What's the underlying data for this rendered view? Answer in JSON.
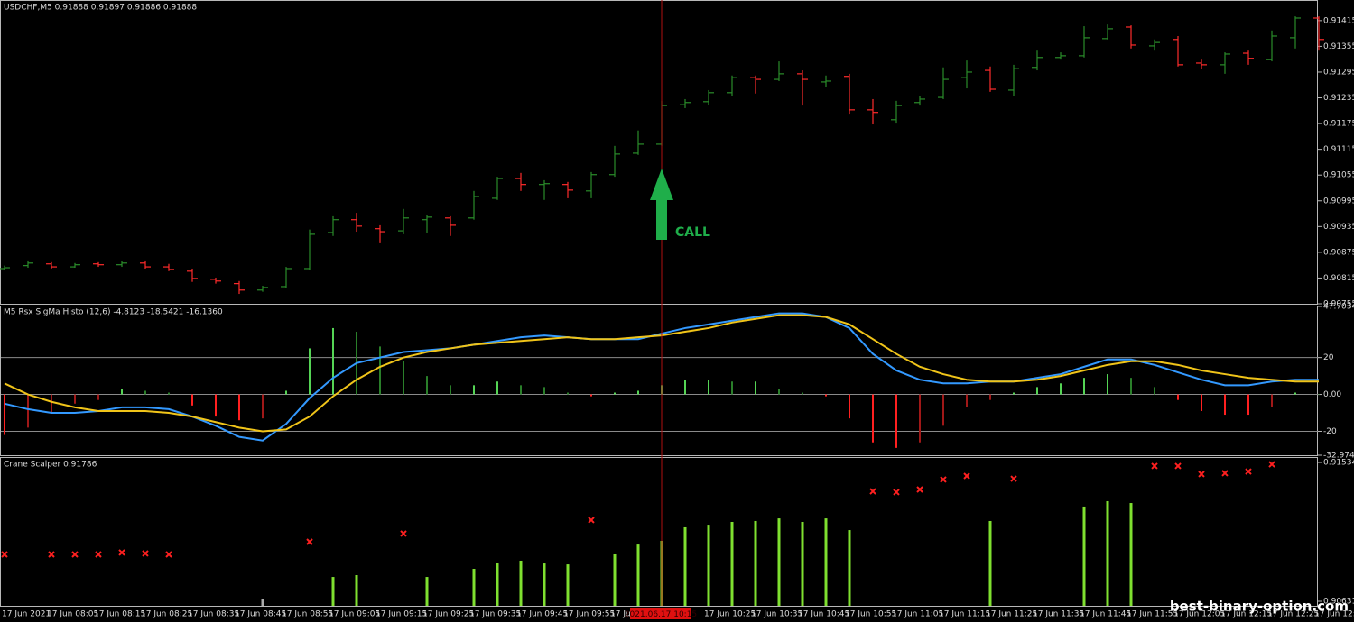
{
  "chart_data": [
    {
      "type": "ohlc",
      "title": "USDCHF,M5  0.91888 0.91897 0.91886 0.91888",
      "annotation": "CALL",
      "up_color": "#2a8c2a",
      "down_color": "#ff2b2b",
      "ylim": [
        0.90755,
        0.91463
      ],
      "yticks": [
        0.91415,
        0.91355,
        0.91295,
        0.91235,
        0.91175,
        0.91115,
        0.91055,
        0.90995,
        0.90935,
        0.90875,
        0.90815,
        0.90755
      ],
      "open": [
        0.90837,
        0.90844,
        0.90848,
        0.90841,
        0.90848,
        0.90846,
        0.9085,
        0.90841,
        0.90831,
        0.90812,
        0.90802,
        0.90787,
        0.90795,
        0.90837,
        0.90921,
        0.90951,
        0.9093,
        0.90925,
        0.90951,
        0.90955,
        0.90955,
        0.91001,
        0.91047,
        0.91033,
        0.91033,
        0.91018,
        0.91056,
        0.91106,
        0.91127,
        0.91219,
        0.91226,
        0.91247,
        0.91282,
        0.91278,
        0.91291,
        0.91272,
        0.91285,
        0.91207,
        0.91184,
        0.91224,
        0.91236,
        0.91282,
        0.91299,
        0.91253,
        0.91306,
        0.91329,
        0.91333,
        0.91373,
        0.914,
        0.91356,
        0.91371,
        0.91316,
        0.91312,
        0.91339,
        0.91324,
        0.91375,
        0.91421
      ],
      "high": [
        0.90844,
        0.90856,
        0.90852,
        0.9085,
        0.90852,
        0.90854,
        0.90856,
        0.90848,
        0.90837,
        0.90816,
        0.90808,
        0.90797,
        0.90841,
        0.90928,
        0.90959,
        0.90967,
        0.90938,
        0.90976,
        0.90963,
        0.90959,
        0.91018,
        0.91051,
        0.9106,
        0.91043,
        0.91039,
        0.91062,
        0.91123,
        0.91159,
        0.91228,
        0.91232,
        0.91253,
        0.91287,
        0.91287,
        0.9132,
        0.91299,
        0.91287,
        0.91291,
        0.91232,
        0.91228,
        0.9124,
        0.91306,
        0.91322,
        0.91308,
        0.91312,
        0.91345,
        0.91341,
        0.91402,
        0.91406,
        0.91404,
        0.91371,
        0.91379,
        0.91324,
        0.91341,
        0.91345,
        0.91392,
        0.91425,
        0.91425
      ],
      "low": [
        0.90833,
        0.90839,
        0.90837,
        0.90839,
        0.90841,
        0.90841,
        0.90837,
        0.90831,
        0.90806,
        0.90802,
        0.90778,
        0.90783,
        0.90791,
        0.90833,
        0.90913,
        0.90923,
        0.90896,
        0.90917,
        0.90921,
        0.90913,
        0.90951,
        0.90997,
        0.91018,
        0.90997,
        0.91001,
        0.91001,
        0.91051,
        0.91102,
        0.91123,
        0.91211,
        0.91219,
        0.9124,
        0.91245,
        0.91274,
        0.91217,
        0.91261,
        0.91196,
        0.91173,
        0.91175,
        0.91217,
        0.91232,
        0.91257,
        0.91249,
        0.9124,
        0.91299,
        0.91324,
        0.91329,
        0.91371,
        0.9135,
        0.91345,
        0.91308,
        0.91303,
        0.91291,
        0.91312,
        0.9132,
        0.9135,
        0.91345
      ],
      "close": [
        0.90839,
        0.9085,
        0.90841,
        0.90846,
        0.90846,
        0.9085,
        0.90841,
        0.90835,
        0.90814,
        0.90808,
        0.90787,
        0.90793,
        0.90837,
        0.90917,
        0.90951,
        0.90936,
        0.90923,
        0.90955,
        0.90957,
        0.90938,
        0.91005,
        0.91047,
        0.91033,
        0.91035,
        0.9102,
        0.91056,
        0.91104,
        0.91127,
        0.91217,
        0.91224,
        0.91247,
        0.91282,
        0.91278,
        0.91291,
        0.91278,
        0.91274,
        0.91207,
        0.91201,
        0.91217,
        0.91232,
        0.91278,
        0.91295,
        0.91255,
        0.91303,
        0.91329,
        0.91333,
        0.91375,
        0.91396,
        0.91358,
        0.91364,
        0.91312,
        0.91312,
        0.91337,
        0.91327,
        0.91379,
        0.91421,
        0.91371
      ]
    },
    {
      "type": "histogram_lines",
      "title": "M5  Rsx SigMa Histo (12,6) -4.8123 -18.5421 -16.1360",
      "ylim": [
        -32.9744,
        47.7034
      ],
      "yticks": [
        47.7034,
        20,
        {
          "value": 0,
          "label": "0.00"
        },
        -20,
        -32.9744
      ],
      "grid": true,
      "colors": {
        "rise": "#55d455",
        "fall": "#2a7f2a",
        "drop": "#ff2020",
        "recover": "#a01818"
      },
      "values": [
        -22,
        -18,
        -10,
        -5,
        -3,
        3,
        2,
        1,
        -6,
        -12,
        -14,
        -13,
        2,
        25,
        36,
        34,
        26,
        18,
        10,
        5,
        5,
        7,
        5,
        4,
        1,
        -1,
        1,
        2,
        5,
        8,
        8,
        7,
        7,
        3,
        1,
        -1,
        -13,
        -26,
        -29,
        -26,
        -17,
        -7,
        -3,
        1,
        4,
        6,
        9,
        11,
        9,
        4,
        -3,
        -9,
        -11,
        -11,
        -7,
        1,
        0
      ],
      "series": [
        {
          "color": "#3399ff",
          "values": [
            -5,
            -8,
            -10,
            -10,
            -9,
            -7,
            -7,
            -8,
            -12,
            -17,
            -23,
            -25,
            -16,
            -2,
            9,
            17,
            20,
            23,
            24,
            25,
            27,
            29,
            31,
            32,
            31,
            30,
            30,
            30,
            33,
            36,
            38,
            40,
            42,
            44,
            44,
            42,
            36,
            22,
            13,
            8,
            6,
            6,
            7,
            7,
            9,
            11,
            15,
            19,
            19,
            16,
            12,
            8,
            5,
            5,
            7,
            8,
            8
          ]
        },
        {
          "color": "#f0c419",
          "values": [
            6,
            0,
            -4,
            -7,
            -9,
            -9,
            -9,
            -10,
            -12,
            -15,
            -18,
            -20,
            -19,
            -12,
            -1,
            8,
            15,
            20,
            23,
            25,
            27,
            28,
            29,
            30,
            31,
            30,
            30,
            31,
            32,
            34,
            36,
            39,
            41,
            43,
            43,
            42,
            38,
            30,
            22,
            15,
            11,
            8,
            7,
            7,
            8,
            10,
            13,
            16,
            18,
            18,
            16,
            13,
            11,
            9,
            8,
            7,
            7
          ]
        }
      ]
    },
    {
      "type": "scalper",
      "title": "Crane Scalper 0.91786",
      "ylim": [
        0.90631,
        0.91534
      ],
      "yticks": [
        0.91534,
        0.90631
      ],
      "crosshair_label": "2021.06.17 10:15",
      "watermark": "best-binary-option.com",
      "categories": [
        "17 Jun 2021",
        null,
        "17 Jun 08:05",
        null,
        "17 Jun 08:15",
        null,
        "17 Jun 08:25",
        null,
        "17 Jun 08:35",
        null,
        "17 Jun 08:45",
        null,
        "17 Jun 08:55",
        null,
        "17 Jun 09:05",
        null,
        "17 Jun 09:15",
        null,
        "17 Jun 09:25",
        null,
        "17 Jun 09:35",
        null,
        "17 Jun 09:45",
        null,
        "17 Jun 09:55",
        null,
        "17 Jun 10:05",
        null,
        null,
        null,
        "17 Jun 10:25",
        null,
        "17 Jun 10:35",
        null,
        "17 Jun 10:45",
        null,
        "17 Jun 10:55",
        null,
        "17 Jun 11:05",
        null,
        "17 Jun 11:15",
        null,
        "17 Jun 11:25",
        null,
        "17 Jun 11:35",
        null,
        "17 Jun 11:45",
        null,
        "17 Jun 11:55",
        null,
        "17 Jun 12:05",
        null,
        "17 Jun 12:15",
        null,
        "17 Jun 12:25",
        null,
        "17 Jun 12:3"
      ],
      "markers": {
        "color": "#ff2020",
        "values": [
          0.90936,
          null,
          0.90936,
          0.90936,
          0.90936,
          0.90948,
          0.90942,
          0.90936,
          null,
          null,
          null,
          null,
          null,
          0.91018,
          null,
          null,
          null,
          0.91071,
          null,
          null,
          null,
          null,
          null,
          null,
          null,
          0.91159,
          null,
          null,
          null,
          null,
          null,
          null,
          null,
          null,
          null,
          null,
          null,
          0.91346,
          0.91341,
          0.91358,
          0.91423,
          0.91446,
          null,
          0.91428,
          null,
          null,
          null,
          null,
          null,
          0.91511,
          0.91511,
          0.91458,
          0.91464,
          0.91475,
          0.91522,
          null,
          null
        ]
      },
      "series": [
        {
          "color": "#7fe030",
          "values": [
            null,
            null,
            null,
            null,
            null,
            null,
            null,
            null,
            null,
            null,
            null,
            null,
            null,
            null,
            0.90789,
            0.90801,
            null,
            null,
            0.90789,
            null,
            0.90842,
            0.90883,
            0.90895,
            0.90877,
            0.90871,
            null,
            0.90936,
            0.91,
            0.91024,
            0.91112,
            0.91129,
            0.91147,
            0.91153,
            0.9117,
            0.91147,
            0.9117,
            0.91094,
            null,
            null,
            null,
            null,
            null,
            0.91153,
            null,
            null,
            null,
            0.91247,
            0.91282,
            0.9127,
            null,
            null,
            null,
            null,
            null,
            null,
            null,
            null
          ]
        },
        {
          "color": "#aaaaaa",
          "values": [
            null,
            null,
            null,
            null,
            null,
            null,
            null,
            null,
            null,
            null,
            null,
            0.90643,
            null,
            null,
            null,
            null,
            null,
            null,
            null,
            null,
            null,
            null,
            null,
            null,
            null,
            null,
            null,
            null,
            null,
            null,
            null,
            null,
            null,
            null,
            null,
            null,
            null,
            null,
            null,
            null,
            null,
            null,
            null,
            null,
            null,
            null,
            null,
            null,
            null,
            null,
            null,
            null,
            null,
            null,
            null,
            null,
            null
          ]
        }
      ]
    }
  ]
}
